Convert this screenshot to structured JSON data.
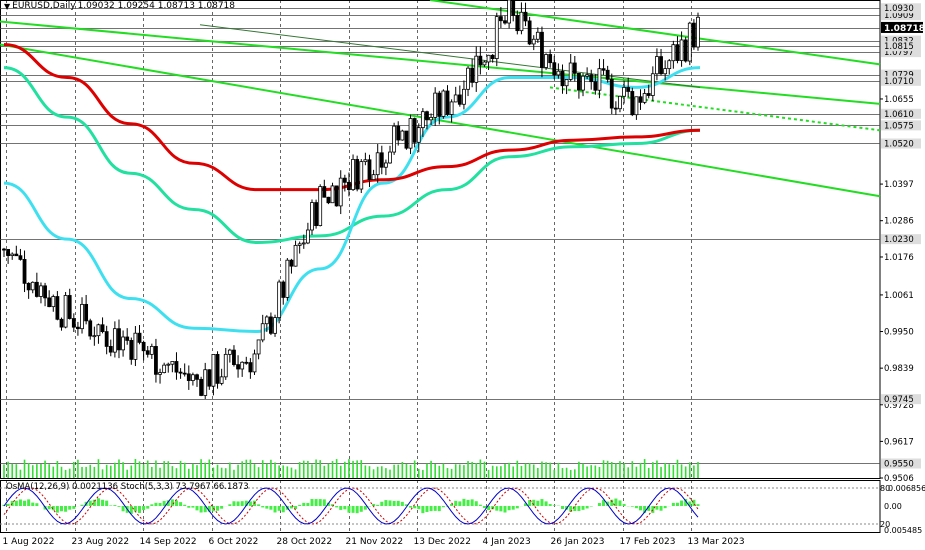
{
  "header": {
    "symbol": "EURUSD,Daily",
    "ohlc": "1.09032 1.09254 1.08713 1.08718"
  },
  "oscillator_label": "OsMA(12,26,9) 0.0021136  Stoch(5,3,3) 73.7967 66.1873",
  "colors": {
    "candle": "#000000",
    "ma_red": "#dd0000",
    "ma_cyan": "#3ee0f0",
    "ma_aqua": "#22e0a0",
    "channel": "#22dd22",
    "stoch_main": "#0000cc",
    "stoch_signal": "#cc0000",
    "osma": "#44ee44",
    "grid": "#000000"
  },
  "price_axis": {
    "labels": [
      "1.0655",
      "1.0397",
      "1.0286",
      "1.0176",
      "1.0061",
      "0.9950",
      "0.9839",
      "0.9728",
      "0.9617",
      "0.9506"
    ],
    "highlighted": [
      "1.0909",
      "1.0832",
      "1.0797",
      "1.0930",
      "1.0871",
      "1.0815",
      "1.0729",
      "1.0710",
      "1.0610",
      "1.0575",
      "1.0520",
      "1.0230",
      "0.9745",
      "0.9550"
    ]
  },
  "osc_axis": [
    "0.0068567",
    "0.00",
    "0.005485",
    "80",
    "20"
  ],
  "date_axis": [
    "1 Aug 2022",
    "23 Aug 2022",
    "14 Sep 2022",
    "6 Oct 2022",
    "28 Oct 2022",
    "21 Nov 2022",
    "13 Dec 2022",
    "4 Jan 2023",
    "26 Jan 2023",
    "17 Feb 2023",
    "13 Mar 2023"
  ],
  "chart_data": {
    "type": "candlestick",
    "ylim": [
      0.9506,
      1.0955
    ],
    "current_price": 1.08718,
    "dates": [
      "1 Aug 2022",
      "23 Aug 2022",
      "14 Sep 2022",
      "6 Oct 2022",
      "28 Oct 2022",
      "21 Nov 2022",
      "13 Dec 2022",
      "4 Jan 2023",
      "26 Jan 2023",
      "17 Feb 2023",
      "13 Mar 2023",
      "Mar 2023"
    ],
    "anchor_closes": [
      1.02,
      1.0,
      0.992,
      0.98,
      0.988,
      1.035,
      1.05,
      1.064,
      1.09,
      1.072,
      1.065,
      1.087
    ],
    "ma_red": [
      1.082,
      1.072,
      1.058,
      1.046,
      1.038,
      1.038,
      1.041,
      1.045,
      1.05,
      1.053,
      1.054,
      1.056
    ],
    "ma_cyan": [
      1.04,
      1.023,
      1.005,
      0.996,
      0.995,
      1.014,
      1.04,
      1.06,
      1.072,
      1.072,
      1.069,
      1.075
    ],
    "ma_aqua": [
      1.075,
      1.06,
      1.043,
      1.032,
      1.022,
      1.024,
      1.03,
      1.038,
      1.048,
      1.051,
      1.052,
      1.056
    ]
  }
}
